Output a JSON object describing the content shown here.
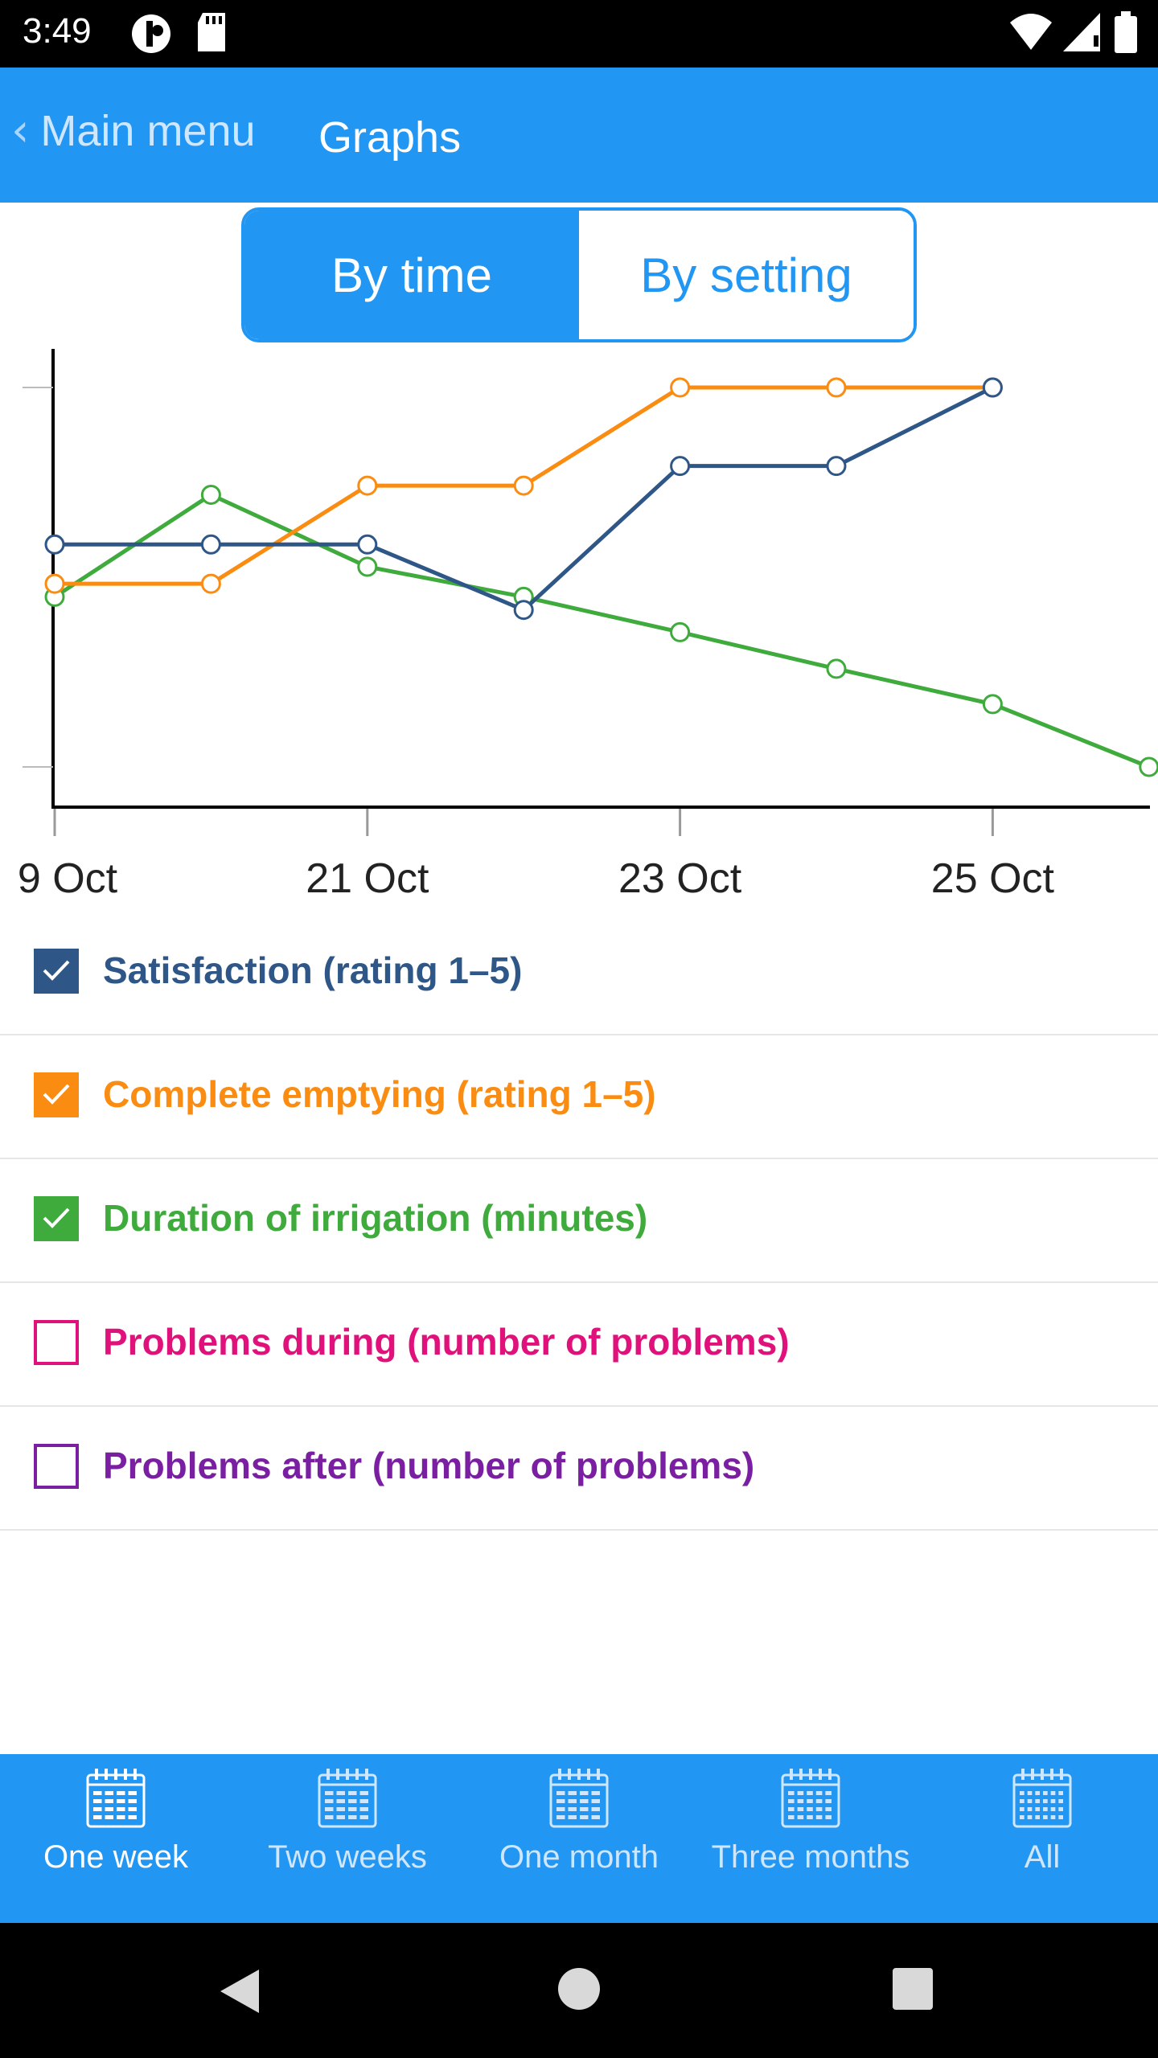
{
  "status_bar": {
    "time": "3:49"
  },
  "app_bar": {
    "back_label": "Main menu",
    "title": "Graphs"
  },
  "segmented": {
    "by_time": "By time",
    "by_setting": "By setting",
    "selected": "By time"
  },
  "chart_data": {
    "type": "line",
    "x_tick_labels": [
      "9 Oct",
      "21 Oct",
      "23 Oct",
      "25 Oct"
    ],
    "x": [
      0,
      1,
      2,
      3,
      4,
      5,
      6,
      7
    ],
    "series": [
      {
        "name": "Satisfaction (rating 1–5)",
        "color": "#2e5788",
        "values": [
          4.3,
          4.3,
          4.3,
          3.8,
          4.9,
          4.9,
          5.5,
          null
        ]
      },
      {
        "name": "Complete emptying (rating 1–5)",
        "color": "#fb8c12",
        "values": [
          4.0,
          4.0,
          4.75,
          4.75,
          5.5,
          5.5,
          5.5,
          null
        ]
      },
      {
        "name": "Duration of irrigation (minutes)",
        "color": "#3fab3c",
        "values": [
          3.9,
          4.68,
          4.13,
          3.9,
          3.63,
          3.35,
          3.08,
          2.6
        ]
      }
    ],
    "ylim": [
      2.6,
      5.5
    ],
    "grid": false
  },
  "legend": [
    {
      "label": "Satisfaction (rating 1–5)",
      "color": "#2e5788",
      "checked": true
    },
    {
      "label": "Complete emptying (rating 1–5)",
      "color": "#fb8c12",
      "checked": true
    },
    {
      "label": "Duration of irrigation (minutes)",
      "color": "#3fab3c",
      "checked": true
    },
    {
      "label": "Problems during (number of problems)",
      "color": "#e0117a",
      "checked": false
    },
    {
      "label": "Problems after (number of problems)",
      "color": "#7b1fa2",
      "checked": false
    }
  ],
  "tabs": [
    {
      "label": "One week",
      "active": true
    },
    {
      "label": "Two weeks",
      "active": false
    },
    {
      "label": "One month",
      "active": false
    },
    {
      "label": "Three months",
      "active": false
    },
    {
      "label": "All",
      "active": false
    }
  ]
}
